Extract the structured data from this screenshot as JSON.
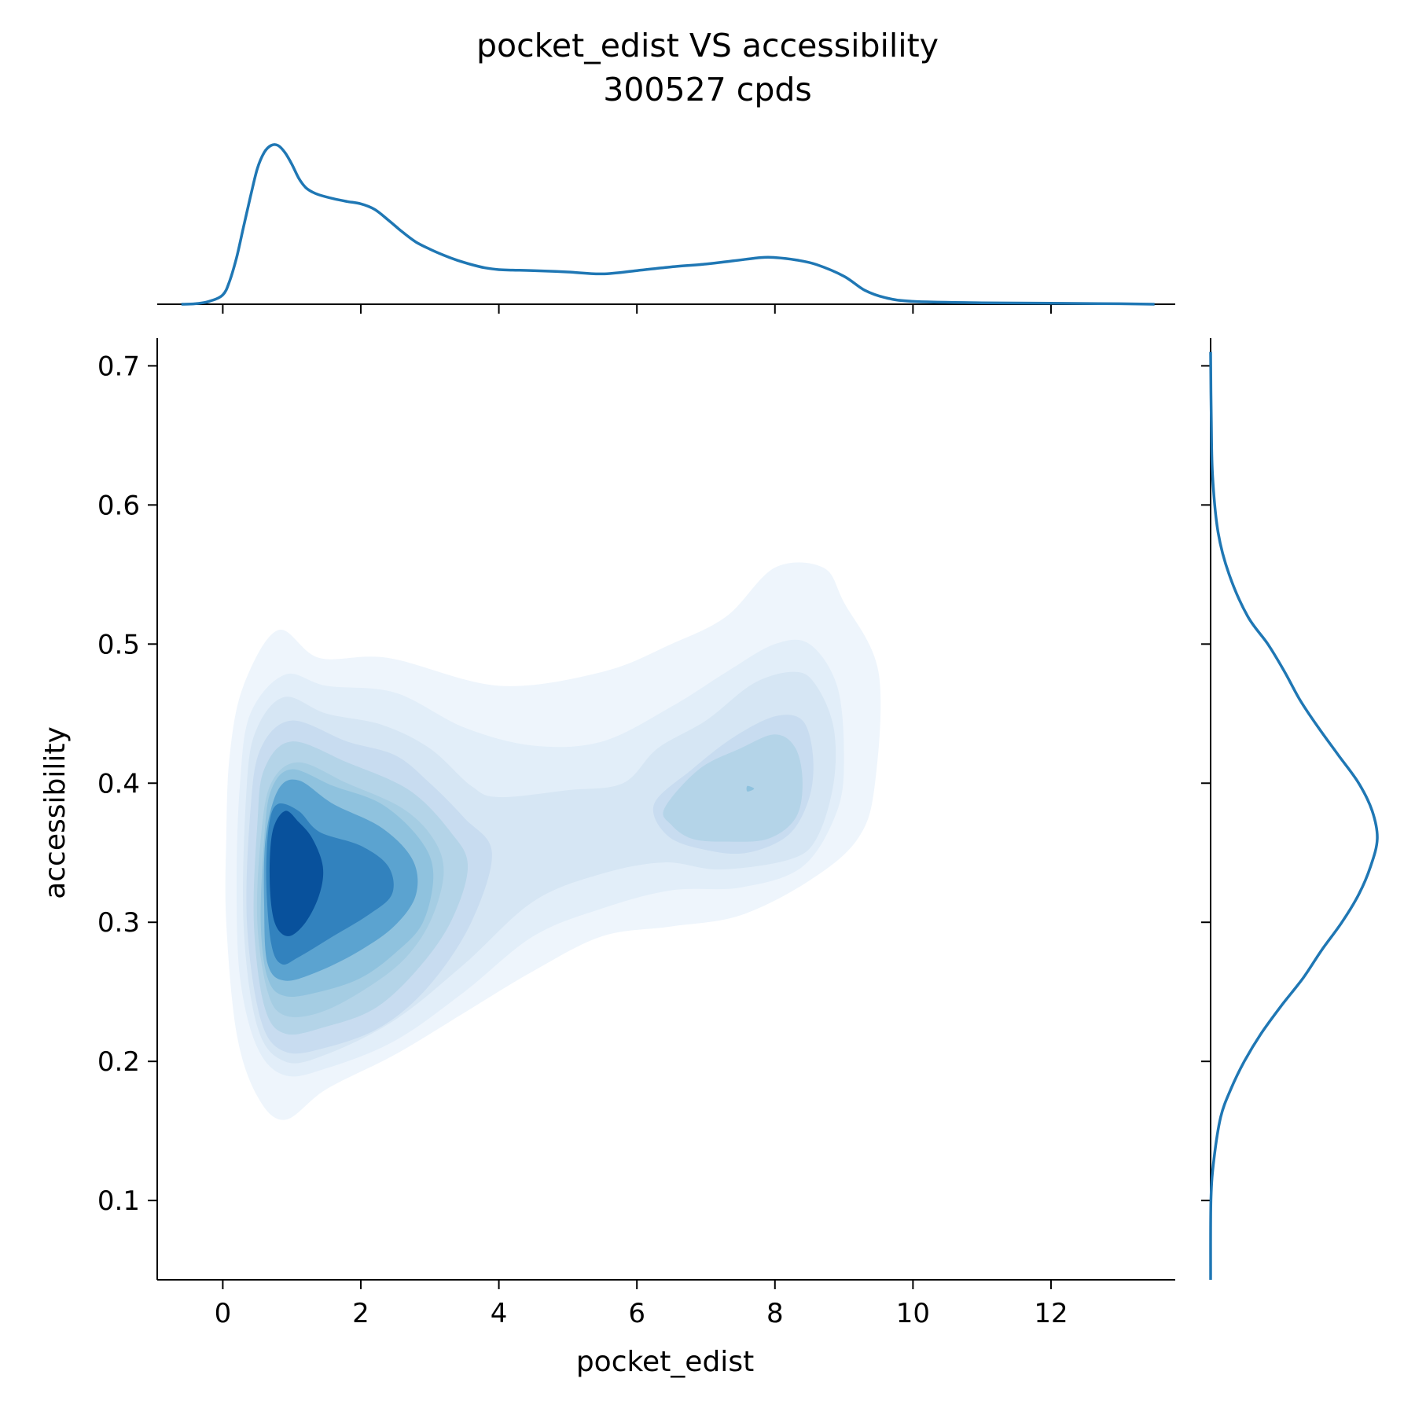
{
  "chart_data": {
    "type": "jointplot-kde",
    "title": "pocket_edist VS accessibility",
    "subtitle": "300527 cpds",
    "xlabel": "pocket_edist",
    "ylabel": "accessibility",
    "xlim": [
      -0.95,
      13.8
    ],
    "ylim": [
      0.043,
      0.72
    ],
    "x_ticks": [
      0,
      2,
      4,
      6,
      8,
      10,
      12
    ],
    "y_ticks": [
      0.1,
      0.2,
      0.3,
      0.4,
      0.5,
      0.6,
      0.7
    ],
    "x_tick_labels": [
      "0",
      "2",
      "4",
      "6",
      "8",
      "10",
      "12"
    ],
    "y_tick_labels": [
      "0.1",
      "0.2",
      "0.3",
      "0.4",
      "0.5",
      "0.6",
      "0.7"
    ],
    "line_color": "#1f77b4",
    "contour_colors": [
      "#eef5fc",
      "#e2eef9",
      "#d6e6f4",
      "#c8dcf0",
      "#b4d4e8",
      "#a5cde3",
      "#8fc2de",
      "#5ba3d0",
      "#3282be",
      "#08519c"
    ],
    "marginal_x": {
      "x": [
        -0.6,
        -0.4,
        -0.2,
        0.0,
        0.1,
        0.2,
        0.3,
        0.4,
        0.5,
        0.6,
        0.7,
        0.8,
        0.9,
        1.0,
        1.1,
        1.2,
        1.3,
        1.4,
        1.6,
        1.8,
        2.0,
        2.2,
        2.4,
        2.6,
        2.8,
        3.0,
        3.2,
        3.4,
        3.6,
        3.8,
        4.0,
        4.2,
        4.5,
        5.0,
        5.5,
        6.0,
        6.5,
        7.0,
        7.4,
        7.8,
        8.0,
        8.3,
        8.6,
        9.0,
        9.3,
        9.6,
        10.0,
        11.0,
        12.0,
        13.0,
        13.5
      ],
      "density": [
        0.0,
        0.001,
        0.006,
        0.02,
        0.05,
        0.1,
        0.165,
        0.23,
        0.29,
        0.325,
        0.34,
        0.34,
        0.325,
        0.3,
        0.27,
        0.25,
        0.24,
        0.234,
        0.226,
        0.22,
        0.215,
        0.203,
        0.18,
        0.155,
        0.133,
        0.118,
        0.105,
        0.094,
        0.085,
        0.078,
        0.074,
        0.073,
        0.072,
        0.069,
        0.065,
        0.072,
        0.08,
        0.086,
        0.093,
        0.1,
        0.1,
        0.095,
        0.085,
        0.06,
        0.03,
        0.014,
        0.006,
        0.003,
        0.002,
        0.001,
        0.0
      ]
    },
    "marginal_y": {
      "y": [
        0.043,
        0.1,
        0.13,
        0.16,
        0.18,
        0.2,
        0.22,
        0.24,
        0.26,
        0.28,
        0.3,
        0.32,
        0.34,
        0.36,
        0.38,
        0.4,
        0.42,
        0.44,
        0.46,
        0.48,
        0.5,
        0.52,
        0.55,
        0.58,
        0.62,
        0.66,
        0.71
      ],
      "density": [
        0.0,
        0.002,
        0.02,
        0.06,
        0.12,
        0.2,
        0.3,
        0.42,
        0.55,
        0.66,
        0.78,
        0.88,
        0.95,
        0.99,
        0.96,
        0.88,
        0.76,
        0.64,
        0.53,
        0.44,
        0.34,
        0.22,
        0.11,
        0.045,
        0.012,
        0.004,
        0.0
      ]
    },
    "contours": [
      {
        "level": 1,
        "points": [
          [
            0.3,
            0.47
          ],
          [
            0.8,
            0.51
          ],
          [
            1.4,
            0.49
          ],
          [
            2.4,
            0.49
          ],
          [
            4.0,
            0.47
          ],
          [
            5.5,
            0.48
          ],
          [
            6.5,
            0.5
          ],
          [
            7.3,
            0.52
          ],
          [
            8.0,
            0.555
          ],
          [
            8.7,
            0.555
          ],
          [
            9.0,
            0.53
          ],
          [
            9.5,
            0.48
          ],
          [
            9.45,
            0.4
          ],
          [
            9.2,
            0.36
          ],
          [
            8.5,
            0.33
          ],
          [
            7.5,
            0.305
          ],
          [
            6.5,
            0.297
          ],
          [
            5.5,
            0.29
          ],
          [
            4.5,
            0.265
          ],
          [
            3.5,
            0.235
          ],
          [
            2.5,
            0.205
          ],
          [
            1.5,
            0.18
          ],
          [
            0.9,
            0.158
          ],
          [
            0.5,
            0.175
          ],
          [
            0.2,
            0.22
          ],
          [
            0.05,
            0.3
          ],
          [
            0.05,
            0.36
          ],
          [
            0.1,
            0.42
          ]
        ]
      },
      {
        "level": 2,
        "points": [
          [
            0.4,
            0.45
          ],
          [
            0.9,
            0.478
          ],
          [
            1.5,
            0.47
          ],
          [
            2.5,
            0.465
          ],
          [
            3.5,
            0.44
          ],
          [
            4.5,
            0.427
          ],
          [
            5.5,
            0.43
          ],
          [
            6.5,
            0.455
          ],
          [
            7.3,
            0.48
          ],
          [
            8.0,
            0.5
          ],
          [
            8.5,
            0.5
          ],
          [
            8.9,
            0.47
          ],
          [
            9.0,
            0.42
          ],
          [
            8.9,
            0.38
          ],
          [
            8.4,
            0.34
          ],
          [
            7.5,
            0.325
          ],
          [
            6.5,
            0.323
          ],
          [
            5.5,
            0.31
          ],
          [
            4.5,
            0.29
          ],
          [
            3.5,
            0.25
          ],
          [
            2.5,
            0.215
          ],
          [
            1.5,
            0.195
          ],
          [
            0.9,
            0.19
          ],
          [
            0.5,
            0.21
          ],
          [
            0.25,
            0.26
          ],
          [
            0.2,
            0.33
          ],
          [
            0.25,
            0.4
          ]
        ]
      },
      {
        "level": 3,
        "points": [
          [
            0.5,
            0.44
          ],
          [
            0.9,
            0.462
          ],
          [
            1.5,
            0.45
          ],
          [
            2.3,
            0.442
          ],
          [
            3.0,
            0.425
          ],
          [
            3.6,
            0.398
          ],
          [
            4.0,
            0.39
          ],
          [
            5.0,
            0.395
          ],
          [
            5.8,
            0.4
          ],
          [
            6.3,
            0.425
          ],
          [
            7.0,
            0.445
          ],
          [
            7.7,
            0.472
          ],
          [
            8.3,
            0.48
          ],
          [
            8.6,
            0.47
          ],
          [
            8.85,
            0.44
          ],
          [
            8.85,
            0.4
          ],
          [
            8.6,
            0.36
          ],
          [
            8.2,
            0.345
          ],
          [
            7.2,
            0.338
          ],
          [
            6.4,
            0.343
          ],
          [
            5.5,
            0.335
          ],
          [
            4.5,
            0.315
          ],
          [
            3.5,
            0.27
          ],
          [
            2.5,
            0.23
          ],
          [
            1.5,
            0.205
          ],
          [
            0.9,
            0.2
          ],
          [
            0.5,
            0.225
          ],
          [
            0.3,
            0.3
          ],
          [
            0.35,
            0.4
          ]
        ]
      },
      {
        "level": 4,
        "points": [
          [
            0.55,
            0.425
          ],
          [
            1.0,
            0.445
          ],
          [
            1.8,
            0.43
          ],
          [
            2.5,
            0.42
          ],
          [
            3.0,
            0.4
          ],
          [
            3.5,
            0.375
          ],
          [
            3.9,
            0.35
          ],
          [
            3.6,
            0.3
          ],
          [
            3.0,
            0.255
          ],
          [
            2.3,
            0.225
          ],
          [
            1.5,
            0.21
          ],
          [
            0.9,
            0.207
          ],
          [
            0.55,
            0.23
          ],
          [
            0.35,
            0.3
          ],
          [
            0.4,
            0.38
          ]
        ]
      },
      {
        "level": 5,
        "points": [
          [
            0.6,
            0.41
          ],
          [
            1.0,
            0.43
          ],
          [
            1.8,
            0.415
          ],
          [
            2.7,
            0.395
          ],
          [
            3.3,
            0.365
          ],
          [
            3.55,
            0.34
          ],
          [
            3.3,
            0.3
          ],
          [
            2.8,
            0.265
          ],
          [
            2.2,
            0.238
          ],
          [
            1.5,
            0.225
          ],
          [
            0.9,
            0.22
          ],
          [
            0.6,
            0.24
          ],
          [
            0.45,
            0.3
          ],
          [
            0.5,
            0.37
          ]
        ]
      },
      {
        "level": 6,
        "points": [
          [
            0.7,
            0.4
          ],
          [
            1.1,
            0.415
          ],
          [
            1.8,
            0.4
          ],
          [
            2.6,
            0.382
          ],
          [
            3.05,
            0.36
          ],
          [
            3.2,
            0.335
          ],
          [
            3.0,
            0.3
          ],
          [
            2.6,
            0.272
          ],
          [
            2.0,
            0.25
          ],
          [
            1.4,
            0.235
          ],
          [
            0.9,
            0.233
          ],
          [
            0.65,
            0.25
          ],
          [
            0.5,
            0.3
          ],
          [
            0.55,
            0.36
          ]
        ]
      },
      {
        "level": 7,
        "points": [
          [
            0.7,
            0.395
          ],
          [
            1.0,
            0.41
          ],
          [
            1.6,
            0.398
          ],
          [
            2.3,
            0.385
          ],
          [
            2.85,
            0.36
          ],
          [
            3.05,
            0.335
          ],
          [
            2.9,
            0.3
          ],
          [
            2.5,
            0.278
          ],
          [
            2.0,
            0.26
          ],
          [
            1.4,
            0.25
          ],
          [
            0.9,
            0.247
          ],
          [
            0.65,
            0.26
          ],
          [
            0.55,
            0.3
          ],
          [
            0.6,
            0.36
          ]
        ]
      },
      {
        "level": 8,
        "points": [
          [
            0.8,
            0.395
          ],
          [
            1.1,
            0.402
          ],
          [
            1.6,
            0.385
          ],
          [
            2.3,
            0.368
          ],
          [
            2.75,
            0.345
          ],
          [
            2.8,
            0.32
          ],
          [
            2.5,
            0.298
          ],
          [
            2.0,
            0.28
          ],
          [
            1.4,
            0.265
          ],
          [
            0.9,
            0.258
          ],
          [
            0.65,
            0.27
          ],
          [
            0.6,
            0.31
          ],
          [
            0.62,
            0.36
          ]
        ]
      },
      {
        "level": 9,
        "points": [
          [
            0.8,
            0.385
          ],
          [
            1.1,
            0.38
          ],
          [
            1.4,
            0.365
          ],
          [
            2.0,
            0.355
          ],
          [
            2.4,
            0.34
          ],
          [
            2.45,
            0.32
          ],
          [
            2.1,
            0.305
          ],
          [
            1.6,
            0.29
          ],
          [
            1.1,
            0.275
          ],
          [
            0.85,
            0.27
          ],
          [
            0.7,
            0.285
          ],
          [
            0.63,
            0.33
          ],
          [
            0.67,
            0.37
          ]
        ]
      },
      {
        "level": 10,
        "points": [
          [
            0.9,
            0.38
          ],
          [
            1.1,
            0.372
          ],
          [
            1.3,
            0.36
          ],
          [
            1.45,
            0.34
          ],
          [
            1.4,
            0.32
          ],
          [
            1.2,
            0.3
          ],
          [
            0.95,
            0.29
          ],
          [
            0.75,
            0.3
          ],
          [
            0.68,
            0.33
          ],
          [
            0.72,
            0.365
          ]
        ]
      },
      {
        "level": 3,
        "points": [
          [
            6.2,
            0.382
          ],
          [
            6.8,
            0.415
          ],
          [
            7.4,
            0.44
          ],
          [
            8.0,
            0.46
          ],
          [
            8.4,
            0.457
          ],
          [
            8.6,
            0.43
          ],
          [
            8.6,
            0.39
          ],
          [
            8.3,
            0.355
          ],
          [
            7.7,
            0.343
          ],
          [
            7.0,
            0.346
          ],
          [
            6.4,
            0.36
          ]
        ]
      },
      {
        "level": 4,
        "points": [
          [
            6.25,
            0.385
          ],
          [
            6.8,
            0.41
          ],
          [
            7.4,
            0.433
          ],
          [
            8.0,
            0.448
          ],
          [
            8.4,
            0.445
          ],
          [
            8.55,
            0.42
          ],
          [
            8.5,
            0.39
          ],
          [
            8.2,
            0.363
          ],
          [
            7.6,
            0.35
          ],
          [
            7.0,
            0.352
          ],
          [
            6.45,
            0.362
          ]
        ]
      },
      {
        "level": 5,
        "points": [
          [
            6.4,
            0.382
          ],
          [
            6.9,
            0.41
          ],
          [
            7.5,
            0.425
          ],
          [
            8.0,
            0.435
          ],
          [
            8.3,
            0.425
          ],
          [
            8.4,
            0.4
          ],
          [
            8.3,
            0.375
          ],
          [
            7.9,
            0.36
          ],
          [
            7.3,
            0.358
          ],
          [
            6.8,
            0.36
          ],
          [
            6.5,
            0.37
          ]
        ]
      },
      {
        "level": 7,
        "points": [
          [
            7.6,
            0.398
          ],
          [
            7.7,
            0.396
          ],
          [
            7.6,
            0.394
          ]
        ]
      }
    ]
  }
}
